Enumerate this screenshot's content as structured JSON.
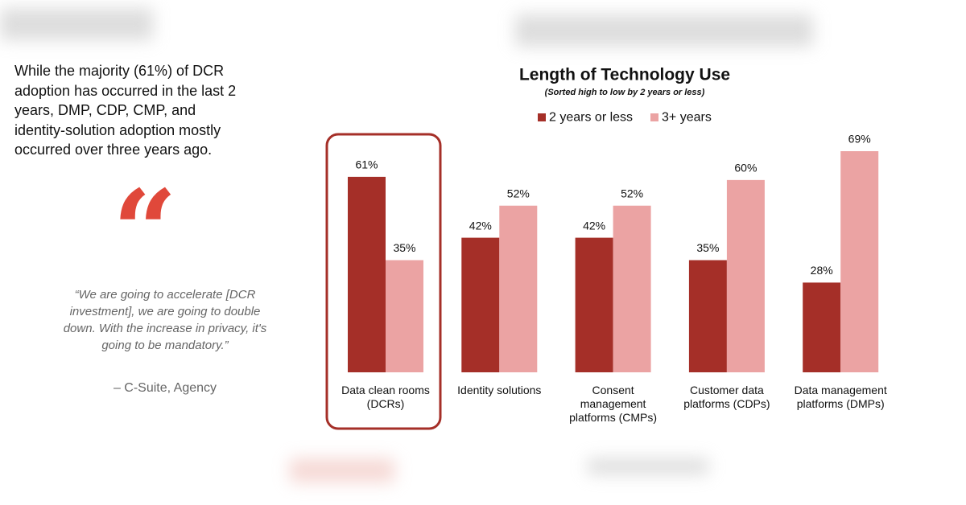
{
  "intro_text": "While the majority (61%) of DCR adoption has occurred in the last 2 years, DMP, CDP, CMP, and identity-solution adoption mostly occurred over three years ago.",
  "quote": "“We are going to accelerate [DCR investment], we are going to double down. With the increase in privacy, it's going to be mandatory.”",
  "attribution": "– C-Suite, Agency",
  "chart_data": {
    "type": "bar",
    "title": "Length of Technology Use",
    "subtitle": "(Sorted high to low by 2 years or less)",
    "categories": [
      "Data clean rooms (DCRs)",
      "Identity solutions",
      "Consent management platforms (CMPs)",
      "Customer data platforms (CDPs)",
      "Data management platforms (DMPs)"
    ],
    "series": [
      {
        "name": "2 years or less",
        "color": "#a52f28",
        "values": [
          61,
          42,
          42,
          35,
          28
        ],
        "value_labels": [
          "61%",
          "42%",
          "42%",
          "35%",
          "28%"
        ]
      },
      {
        "name": "3+ years",
        "color": "#eba3a3",
        "values": [
          35,
          52,
          52,
          60,
          69
        ],
        "value_labels": [
          "35%",
          "52%",
          "52%",
          "60%",
          "69%"
        ]
      }
    ]
  }
}
